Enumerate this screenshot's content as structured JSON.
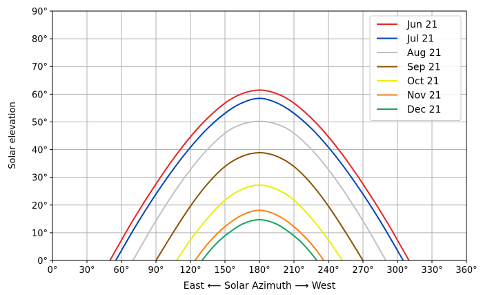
{
  "chart_data": {
    "type": "line",
    "xlabel": "East ⟵ Solar Azimuth ⟶ West",
    "ylabel": "Solar elevation",
    "xlim": [
      0,
      360
    ],
    "ylim": [
      0,
      90
    ],
    "xticks": [
      0,
      30,
      60,
      90,
      120,
      150,
      180,
      210,
      240,
      270,
      300,
      330,
      360
    ],
    "yticks": [
      0,
      10,
      20,
      30,
      40,
      50,
      60,
      70,
      80,
      90
    ],
    "xtick_labels": [
      "0°",
      "30°",
      "60°",
      "90°",
      "120°",
      "150°",
      "180°",
      "210°",
      "240°",
      "270°",
      "300°",
      "330°",
      "360°"
    ],
    "ytick_labels": [
      "0°",
      "10°",
      "20°",
      "30°",
      "40°",
      "50°",
      "60°",
      "70°",
      "80°",
      "90°"
    ],
    "grid": true,
    "legend_position": "top-right",
    "series": [
      {
        "name": "Jun 21",
        "color": "#ee2222",
        "x": [
          50,
          70,
          90,
          110,
          130,
          150,
          165,
          180,
          195,
          210,
          230,
          250,
          270,
          290,
          310
        ],
        "y": [
          0,
          14.5,
          27.6,
          39.4,
          49.3,
          56.8,
          60.2,
          61.5,
          60.2,
          56.8,
          49.3,
          39.4,
          27.6,
          14.5,
          0
        ]
      },
      {
        "name": "Jul 21",
        "color": "#0044bb",
        "x": [
          55,
          75,
          95,
          115,
          135,
          155,
          170,
          180,
          190,
          205,
          225,
          245,
          265,
          285,
          305
        ],
        "y": [
          0,
          14.2,
          27.0,
          38.3,
          47.7,
          54.6,
          57.7,
          58.5,
          57.7,
          54.6,
          47.7,
          38.3,
          27.0,
          14.2,
          0
        ]
      },
      {
        "name": "Aug 21",
        "color": "#c0c0c0",
        "x": [
          70,
          90,
          110,
          130,
          150,
          165,
          180,
          195,
          210,
          230,
          250,
          270,
          290
        ],
        "y": [
          0,
          14.3,
          27.1,
          37.9,
          45.9,
          49.2,
          50.2,
          49.2,
          45.9,
          37.9,
          27.1,
          14.3,
          0
        ]
      },
      {
        "name": "Sep 21",
        "color": "#8b5200",
        "x": [
          90,
          105,
          120,
          135,
          150,
          165,
          180,
          195,
          210,
          225,
          240,
          255,
          270
        ],
        "y": [
          0,
          10.1,
          19.6,
          27.7,
          33.9,
          37.6,
          38.9,
          37.6,
          33.9,
          27.7,
          19.6,
          10.1,
          0
        ]
      },
      {
        "name": "Oct 21",
        "color": "#e8f000",
        "x": [
          108,
          120,
          135,
          150,
          165,
          180,
          195,
          210,
          225,
          240,
          252
        ],
        "y": [
          0,
          7.4,
          15.3,
          21.8,
          25.7,
          27.2,
          25.7,
          21.8,
          15.3,
          7.4,
          0
        ]
      },
      {
        "name": "Nov 21",
        "color": "#ff7f0e",
        "x": [
          124,
          135,
          150,
          165,
          180,
          195,
          210,
          225,
          236
        ],
        "y": [
          0,
          6.0,
          12.2,
          16.4,
          18.1,
          16.4,
          12.2,
          6.0,
          0
        ]
      },
      {
        "name": "Dec 21",
        "color": "#11a55a",
        "x": [
          130,
          140,
          150,
          165,
          180,
          195,
          210,
          220,
          230
        ],
        "y": [
          0,
          5.0,
          8.9,
          13.1,
          14.7,
          13.1,
          8.9,
          5.0,
          0
        ]
      }
    ]
  }
}
